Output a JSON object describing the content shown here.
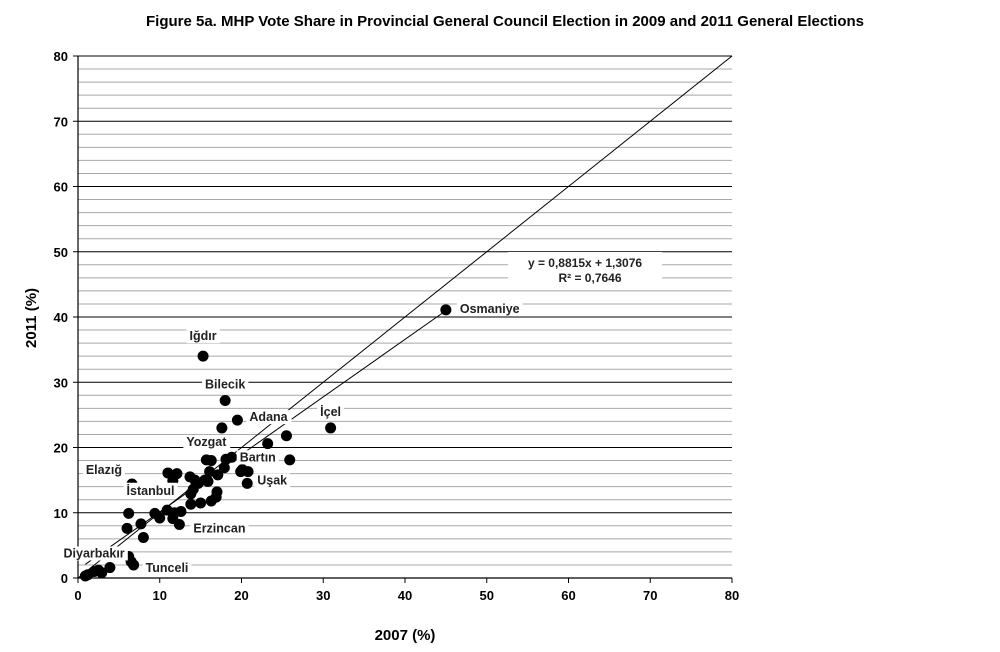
{
  "chart_data": {
    "type": "scatter",
    "title": "Figure 5a. MHP Vote Share in Provincial General Council Election in 2009 and 2011 General Elections",
    "xlabel": "2007 (%)",
    "ylabel": "2011 (%)",
    "xlim": [
      0,
      80
    ],
    "ylim": [
      0,
      80
    ],
    "x_ticks": [
      "0",
      "10",
      "20",
      "30",
      "40",
      "50",
      "60",
      "70",
      "80"
    ],
    "y_ticks": [
      "0",
      "10",
      "20",
      "30",
      "40",
      "50",
      "60",
      "70",
      "80"
    ],
    "grid": {
      "major": 10,
      "minor": 2
    },
    "trendline": {
      "equation": "y = 0,8815x + 1,3076",
      "r2": "R² = 0,7646",
      "slope": 0.8815,
      "intercept": 1.3076
    },
    "reference_line": {
      "slope": 1,
      "intercept": 0
    },
    "points": [
      {
        "x": 45.0,
        "y": 41.1,
        "label": "Osmaniye"
      },
      {
        "x": 15.3,
        "y": 34.0,
        "label": "Iğdır"
      },
      {
        "x": 18.0,
        "y": 27.2,
        "label": "Bilecik"
      },
      {
        "x": 19.5,
        "y": 24.2,
        "label": "Adana"
      },
      {
        "x": 30.9,
        "y": 23.0,
        "label": "İçel"
      },
      {
        "x": 17.6,
        "y": 23.0
      },
      {
        "x": 25.5,
        "y": 21.8
      },
      {
        "x": 23.2,
        "y": 20.6
      },
      {
        "x": 25.9,
        "y": 18.1
      },
      {
        "x": 15.7,
        "y": 18.1,
        "label": "Yozgat"
      },
      {
        "x": 16.3,
        "y": 18.0
      },
      {
        "x": 18.1,
        "y": 18.2
      },
      {
        "x": 18.8,
        "y": 18.5,
        "label": "Bartın"
      },
      {
        "x": 17.9,
        "y": 16.9
      },
      {
        "x": 17.1,
        "y": 15.8
      },
      {
        "x": 16.1,
        "y": 16.3
      },
      {
        "x": 15.9,
        "y": 14.8
      },
      {
        "x": 20.1,
        "y": 16.6
      },
      {
        "x": 20.8,
        "y": 16.3
      },
      {
        "x": 20.7,
        "y": 14.5,
        "label": "Uşak"
      },
      {
        "x": 19.9,
        "y": 16.3
      },
      {
        "x": 11.0,
        "y": 16.1
      },
      {
        "x": 12.1,
        "y": 16.0
      },
      {
        "x": 11.6,
        "y": 14.9
      },
      {
        "x": 13.7,
        "y": 15.5
      },
      {
        "x": 14.3,
        "y": 15.0
      },
      {
        "x": 14.7,
        "y": 14.5
      },
      {
        "x": 15.5,
        "y": 15.0
      },
      {
        "x": 14.1,
        "y": 13.6
      },
      {
        "x": 13.8,
        "y": 12.9
      },
      {
        "x": 17.0,
        "y": 13.2
      },
      {
        "x": 16.9,
        "y": 12.4
      },
      {
        "x": 16.3,
        "y": 11.8
      },
      {
        "x": 15.0,
        "y": 11.5
      },
      {
        "x": 13.8,
        "y": 11.3
      },
      {
        "x": 6.6,
        "y": 14.4,
        "label": "Elazığ"
      },
      {
        "x": 12.6,
        "y": 10.2
      },
      {
        "x": 11.8,
        "y": 10.0,
        "label": "İstanbul"
      },
      {
        "x": 10.9,
        "y": 10.4
      },
      {
        "x": 9.4,
        "y": 9.9
      },
      {
        "x": 10.0,
        "y": 9.2
      },
      {
        "x": 11.6,
        "y": 9.1
      },
      {
        "x": 12.4,
        "y": 8.2,
        "label": "Erzincan"
      },
      {
        "x": 6.2,
        "y": 9.9
      },
      {
        "x": 6.0,
        "y": 7.6
      },
      {
        "x": 7.7,
        "y": 8.3
      },
      {
        "x": 8.0,
        "y": 6.2
      },
      {
        "x": 6.2,
        "y": 3.3,
        "label": "Diyarbakır"
      },
      {
        "x": 6.5,
        "y": 2.5
      },
      {
        "x": 6.8,
        "y": 2.0,
        "label": "Tunceli"
      },
      {
        "x": 1.2,
        "y": 0.5
      },
      {
        "x": 0.9,
        "y": 0.3
      },
      {
        "x": 2.0,
        "y": 1.0
      },
      {
        "x": 2.9,
        "y": 0.8
      },
      {
        "x": 3.9,
        "y": 1.6
      },
      {
        "x": 2.5,
        "y": 1.2
      }
    ]
  }
}
